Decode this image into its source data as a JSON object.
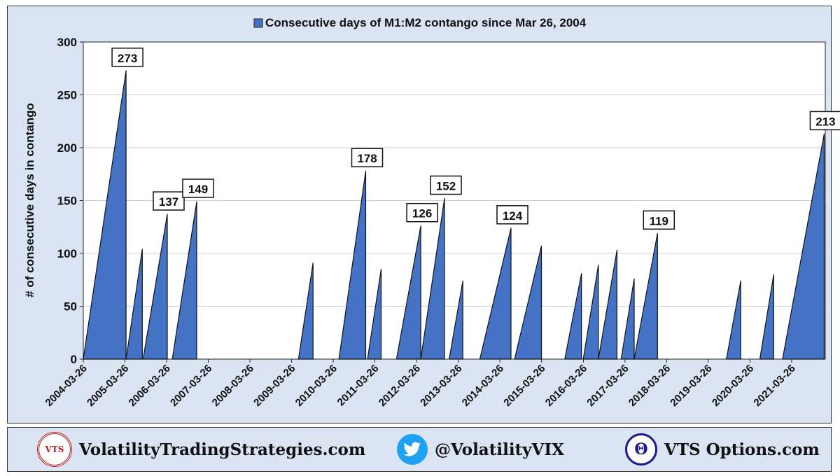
{
  "chart_data": {
    "type": "area",
    "legend": "Consecutive days of M1:M2 contango since Mar 26, 2004",
    "legend_position": "top-center",
    "ylabel": "# of consecutive days in contango",
    "xlabel": "",
    "ylim": [
      0,
      300
    ],
    "yticks": [
      0,
      50,
      100,
      150,
      200,
      250,
      300
    ],
    "xlim": [
      "2004-03-26",
      "2022-01-15"
    ],
    "xticks": [
      "2004-03-26",
      "2005-03-26",
      "2006-03-26",
      "2007-03-26",
      "2008-03-26",
      "2009-03-26",
      "2010-03-26",
      "2011-03-26",
      "2012-03-26",
      "2013-03-26",
      "2014-03-26",
      "2015-03-26",
      "2016-03-26",
      "2017-03-26",
      "2018-03-26",
      "2019-03-26",
      "2020-03-26",
      "2021-03-26"
    ],
    "grid": "horizontal",
    "series_color": "#4472c4",
    "streaks": [
      {
        "start": "2004-03-26",
        "end": "2005-04-05",
        "peak": 273,
        "label": "273"
      },
      {
        "start": "2005-04-05",
        "end": "2005-08-25",
        "peak": 104
      },
      {
        "start": "2005-09-01",
        "end": "2006-04-01",
        "peak": 137,
        "label": "137"
      },
      {
        "start": "2006-05-15",
        "end": "2006-12-15",
        "peak": 149,
        "label": "149"
      },
      {
        "start": "2009-05-25",
        "end": "2009-09-30",
        "peak": 91
      },
      {
        "start": "2010-05-15",
        "end": "2011-01-05",
        "peak": 178,
        "label": "178"
      },
      {
        "start": "2011-01-20",
        "end": "2011-05-20",
        "peak": 85
      },
      {
        "start": "2011-10-01",
        "end": "2012-05-01",
        "peak": 126,
        "label": "126"
      },
      {
        "start": "2012-05-01",
        "end": "2012-11-25",
        "peak": 152,
        "label": "152"
      },
      {
        "start": "2013-01-05",
        "end": "2013-05-05",
        "peak": 74
      },
      {
        "start": "2013-10-01",
        "end": "2014-07-01",
        "peak": 124,
        "label": "124"
      },
      {
        "start": "2014-08-01",
        "end": "2015-03-25",
        "peak": 107
      },
      {
        "start": "2015-10-15",
        "end": "2016-03-10",
        "peak": 81
      },
      {
        "start": "2016-03-25",
        "end": "2016-08-05",
        "peak": 89
      },
      {
        "start": "2016-08-05",
        "end": "2017-01-15",
        "peak": 103
      },
      {
        "start": "2017-02-20",
        "end": "2017-06-15",
        "peak": 76
      },
      {
        "start": "2017-06-15",
        "end": "2018-01-05",
        "peak": 119,
        "label": "119"
      },
      {
        "start": "2019-09-01",
        "end": "2020-01-05",
        "peak": 74
      },
      {
        "start": "2020-06-20",
        "end": "2020-10-20",
        "peak": 80
      },
      {
        "start": "2021-01-05",
        "end": "2022-01-05",
        "peak": 213,
        "label": "213"
      }
    ]
  },
  "footer": {
    "site": "VolatilityTradingStrategies.com",
    "twitter": "@VolatilityVIX",
    "options": "VTS Options.com",
    "logo_text": "VTS",
    "theta_symbol": "Θ"
  }
}
